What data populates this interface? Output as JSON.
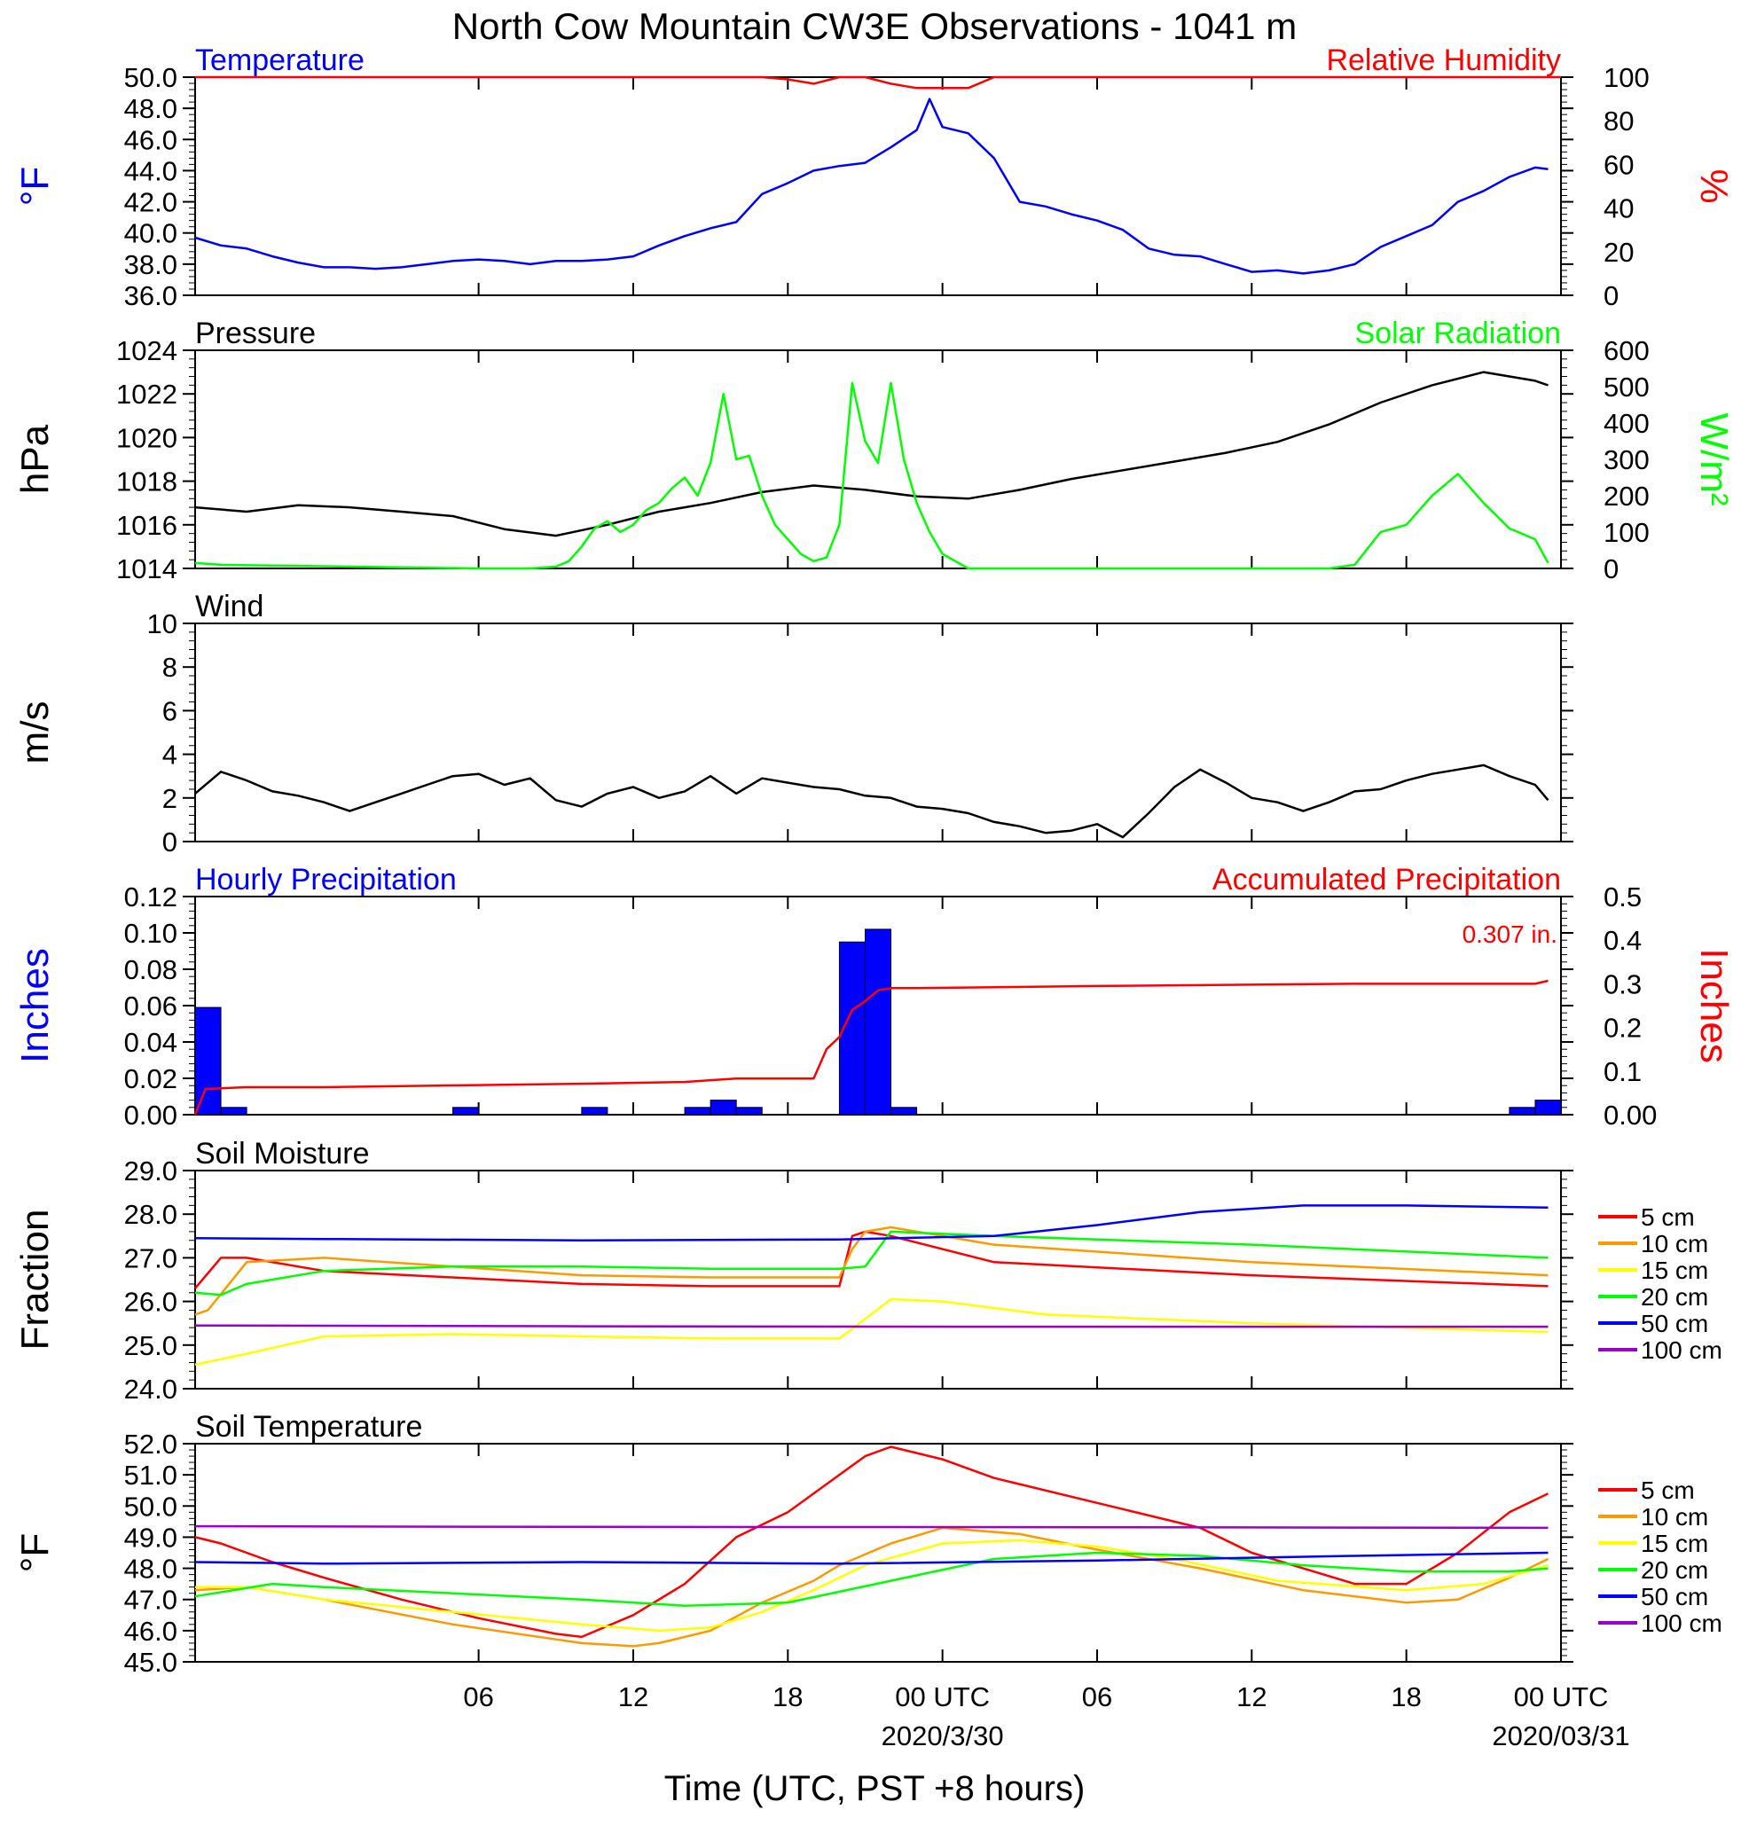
{
  "title": "North Cow Mountain CW3E Observations - 1041 m",
  "xlabel": "Time (UTC, PST +8 hours)",
  "x_ticks": [
    "06",
    "12",
    "18",
    "00 UTC",
    "06",
    "12",
    "18",
    "00 UTC"
  ],
  "x_tick_hours": [
    6,
    12,
    18,
    24,
    30,
    36,
    42,
    48
  ],
  "x_dates": [
    {
      "hour": 24,
      "label": "2020/3/30"
    },
    {
      "hour": 48,
      "label": "2020/03/31"
    }
  ],
  "x_range_hours": [
    -5,
    48
  ],
  "colors": {
    "blue": "#0000ff",
    "red": "#ff0000",
    "green": "#00ff00",
    "black": "#000000",
    "orange": "#ff9900",
    "yellow": "#ffff00",
    "purple": "#9900cc"
  },
  "chart_data": [
    {
      "panel": "temp-rh",
      "type": "line",
      "left_title": "Temperature",
      "right_title": "Relative Humidity",
      "left_unit": "°F",
      "right_unit": "%",
      "ylim_left": [
        36,
        50
      ],
      "yticks_left": [
        "36.0",
        "38.0",
        "40.0",
        "42.0",
        "44.0",
        "46.0",
        "48.0",
        "50.0"
      ],
      "ylim_right": [
        0,
        100
      ],
      "yticks_right": [
        "0",
        "20",
        "40",
        "60",
        "80",
        "100"
      ],
      "series": [
        {
          "name": "Temperature",
          "axis": "left",
          "color": "#0000ff",
          "x": [
            -5,
            -4,
            -3,
            -2,
            -1,
            0,
            1,
            2,
            3,
            4,
            5,
            6,
            7,
            8,
            9,
            10,
            11,
            12,
            13,
            14,
            15,
            16,
            17,
            18,
            19,
            20,
            21,
            22,
            23,
            23.5,
            24,
            25,
            26,
            27,
            28,
            29,
            30,
            31,
            32,
            33,
            34,
            35,
            36,
            37,
            38,
            39,
            40,
            41,
            42,
            43,
            44,
            45,
            46,
            47,
            47.5
          ],
          "y": [
            39.7,
            39.2,
            39.0,
            38.5,
            38.1,
            37.8,
            37.8,
            37.7,
            37.8,
            38.0,
            38.2,
            38.3,
            38.2,
            38.0,
            38.2,
            38.2,
            38.3,
            38.5,
            39.2,
            39.8,
            40.3,
            40.7,
            42.5,
            43.2,
            44.0,
            44.3,
            44.5,
            45.5,
            46.6,
            48.6,
            46.8,
            46.4,
            44.8,
            42.0,
            41.7,
            41.2,
            40.8,
            40.2,
            39.0,
            38.6,
            38.5,
            38.0,
            37.5,
            37.6,
            37.4,
            37.6,
            38.0,
            39.1,
            39.8,
            40.5,
            42.0,
            42.7,
            43.6,
            44.2,
            44.1
          ]
        },
        {
          "name": "Relative Humidity",
          "axis": "right",
          "color": "#ff0000",
          "x": [
            -5,
            14,
            15,
            16,
            17,
            18,
            19,
            20,
            21,
            22,
            23,
            24,
            25,
            26,
            27,
            28,
            48
          ],
          "y": [
            100,
            100,
            100,
            100,
            100,
            99,
            97,
            100,
            100,
            97,
            95,
            95,
            95,
            100,
            100,
            100,
            100
          ]
        }
      ]
    },
    {
      "panel": "pressure-solar",
      "type": "line",
      "left_title": "Pressure",
      "right_title": "Solar Radiation",
      "left_unit": "hPa",
      "right_unit": "W/m²",
      "ylim_left": [
        1014,
        1024
      ],
      "yticks_left": [
        "1014",
        "1016",
        "1018",
        "1020",
        "1022",
        "1024"
      ],
      "ylim_right": [
        0,
        600
      ],
      "yticks_right": [
        "0",
        "100",
        "200",
        "300",
        "400",
        "500",
        "600"
      ],
      "series": [
        {
          "name": "Pressure",
          "axis": "left",
          "color": "#000000",
          "x": [
            -5,
            -3,
            -1,
            1,
            3,
            5,
            7,
            9,
            11,
            13,
            15,
            17,
            19,
            21,
            23,
            25,
            27,
            29,
            31,
            33,
            35,
            37,
            39,
            41,
            43,
            45,
            47,
            47.5
          ],
          "y": [
            1016.8,
            1016.6,
            1016.9,
            1016.8,
            1016.6,
            1016.4,
            1015.8,
            1015.5,
            1016.0,
            1016.6,
            1017.0,
            1017.5,
            1017.8,
            1017.6,
            1017.3,
            1017.2,
            1017.6,
            1018.1,
            1018.5,
            1018.9,
            1019.3,
            1019.8,
            1020.6,
            1021.6,
            1022.4,
            1023.0,
            1022.6,
            1022.4
          ]
        },
        {
          "name": "Solar Radiation",
          "axis": "right",
          "color": "#00ff00",
          "x": [
            -5,
            -4,
            6,
            8,
            9,
            9.5,
            10,
            10.5,
            11,
            11.5,
            12,
            12.5,
            13,
            13.5,
            14,
            14.5,
            15,
            15.5,
            16,
            16.5,
            17,
            17.5,
            18,
            18.5,
            19,
            19.5,
            20,
            20.5,
            21,
            21.5,
            22,
            22.5,
            23,
            23.5,
            24,
            25,
            39,
            40,
            41,
            42,
            43,
            44,
            45,
            46,
            47,
            47.5
          ],
          "y": [
            15,
            10,
            0,
            0,
            5,
            20,
            60,
            110,
            130,
            100,
            120,
            160,
            180,
            220,
            250,
            200,
            290,
            480,
            300,
            310,
            200,
            120,
            80,
            40,
            20,
            30,
            120,
            510,
            350,
            290,
            510,
            300,
            180,
            100,
            40,
            0,
            0,
            10,
            100,
            120,
            200,
            260,
            180,
            110,
            80,
            15
          ]
        }
      ]
    },
    {
      "panel": "wind",
      "type": "line",
      "left_title": "Wind",
      "left_unit": "m/s",
      "ylim_left": [
        0,
        10
      ],
      "yticks_left": [
        "0",
        "2",
        "4",
        "6",
        "8",
        "10"
      ],
      "series": [
        {
          "name": "Wind",
          "axis": "left",
          "color": "#000000",
          "x": [
            -5,
            -4,
            -3,
            -2,
            -1,
            0,
            1,
            2,
            3,
            4,
            5,
            6,
            7,
            8,
            9,
            10,
            11,
            12,
            13,
            14,
            15,
            16,
            17,
            18,
            19,
            20,
            21,
            22,
            23,
            24,
            25,
            26,
            27,
            28,
            29,
            30,
            31,
            32,
            33,
            34,
            35,
            36,
            37,
            38,
            39,
            40,
            41,
            42,
            43,
            44,
            45,
            46,
            47,
            47.5
          ],
          "y": [
            2.2,
            3.2,
            2.8,
            2.3,
            2.1,
            1.8,
            1.4,
            1.8,
            2.2,
            2.6,
            3.0,
            3.1,
            2.6,
            2.9,
            1.9,
            1.6,
            2.2,
            2.5,
            2.0,
            2.3,
            3.0,
            2.2,
            2.9,
            2.7,
            2.5,
            2.4,
            2.1,
            2.0,
            1.6,
            1.5,
            1.3,
            0.9,
            0.7,
            0.4,
            0.5,
            0.8,
            0.2,
            1.3,
            2.5,
            3.3,
            2.7,
            2.0,
            1.8,
            1.4,
            1.8,
            2.3,
            2.4,
            2.8,
            3.1,
            3.3,
            3.5,
            3.0,
            2.6,
            1.9
          ]
        }
      ]
    },
    {
      "panel": "precip",
      "type": "bar",
      "left_title": "Hourly Precipitation",
      "right_title": "Accumulated Precipitation",
      "left_unit": "Inches",
      "right_unit": "Inches",
      "annotation": "0.307 in.",
      "ylim_left": [
        0,
        0.12
      ],
      "yticks_left": [
        "0.00",
        "0.02",
        "0.04",
        "0.06",
        "0.08",
        "0.10",
        "0.12"
      ],
      "ylim_right": [
        0,
        0.5
      ],
      "yticks_right": [
        "0.00",
        "0.1",
        "0.2",
        "0.3",
        "0.4",
        "0.5"
      ],
      "bars_x": [
        -5,
        -4,
        5,
        10,
        14,
        15,
        16,
        20,
        21,
        22,
        46,
        47
      ],
      "bars_y": [
        0.059,
        0.004,
        0.004,
        0.004,
        0.004,
        0.008,
        0.004,
        0.095,
        0.102,
        0.004,
        0.004,
        0.008
      ],
      "series": [
        {
          "name": "Accumulated Precipitation",
          "axis": "right",
          "color": "#ff0000",
          "x": [
            -5,
            -4.6,
            -3,
            0,
            5,
            10,
            14,
            15,
            16,
            19,
            19.5,
            20,
            20.5,
            21,
            21.5,
            22,
            23,
            30,
            40,
            45,
            47,
            47.5
          ],
          "y": [
            0,
            0.059,
            0.063,
            0.063,
            0.067,
            0.071,
            0.075,
            0.079,
            0.083,
            0.083,
            0.15,
            0.178,
            0.24,
            0.26,
            0.285,
            0.29,
            0.29,
            0.295,
            0.3,
            0.3,
            0.3,
            0.307
          ]
        }
      ]
    },
    {
      "panel": "soil-moisture",
      "type": "line",
      "left_title": "Soil Moisture",
      "left_unit": "Fraction",
      "ylim_left": [
        24,
        29
      ],
      "yticks_left": [
        "24.0",
        "25.0",
        "26.0",
        "27.0",
        "28.0",
        "29.0"
      ],
      "series": [
        {
          "name": "5 cm",
          "axis": "left",
          "color": "#ff0000",
          "x": [
            -5,
            -4,
            -3,
            0,
            10,
            15,
            20,
            20.5,
            21,
            22,
            26,
            36,
            47.5
          ],
          "y": [
            26.3,
            27.0,
            27.0,
            26.7,
            26.4,
            26.35,
            26.35,
            27.5,
            27.6,
            27.5,
            26.9,
            26.6,
            26.35
          ]
        },
        {
          "name": "10 cm",
          "axis": "left",
          "color": "#ff9900",
          "x": [
            -5,
            -4.5,
            -3,
            0,
            10,
            15,
            20,
            20.5,
            21,
            22,
            26,
            36,
            47.5
          ],
          "y": [
            25.7,
            25.8,
            26.9,
            27.0,
            26.6,
            26.55,
            26.55,
            27.2,
            27.6,
            27.7,
            27.3,
            26.9,
            26.6
          ]
        },
        {
          "name": "15 cm",
          "axis": "left",
          "color": "#ffff00",
          "x": [
            -5,
            -3,
            0,
            5,
            10,
            15,
            20,
            21,
            22,
            24,
            28,
            36,
            47.5
          ],
          "y": [
            24.55,
            24.8,
            25.2,
            25.25,
            25.2,
            25.15,
            25.15,
            25.6,
            26.05,
            26.0,
            25.7,
            25.5,
            25.3
          ]
        },
        {
          "name": "20 cm",
          "axis": "left",
          "color": "#00ff00",
          "x": [
            -5,
            -4,
            -3,
            0,
            5,
            10,
            15,
            20,
            21,
            22,
            26,
            36,
            47.5
          ],
          "y": [
            26.2,
            26.15,
            26.4,
            26.7,
            26.8,
            26.8,
            26.75,
            26.75,
            26.8,
            27.6,
            27.5,
            27.3,
            27.0
          ]
        },
        {
          "name": "50 cm",
          "axis": "left",
          "color": "#0000ff",
          "x": [
            -5,
            0,
            10,
            20,
            26,
            30,
            34,
            38,
            42,
            47.5
          ],
          "y": [
            27.45,
            27.43,
            27.4,
            27.42,
            27.5,
            27.75,
            28.05,
            28.2,
            28.2,
            28.15
          ]
        },
        {
          "name": "100 cm",
          "axis": "left",
          "color": "#9900cc",
          "x": [
            -5,
            10,
            25,
            47.5
          ],
          "y": [
            25.45,
            25.43,
            25.42,
            25.42
          ]
        }
      ]
    },
    {
      "panel": "soil-temp",
      "type": "line",
      "left_title": "Soil Temperature",
      "left_unit": "°F",
      "ylim_left": [
        45,
        52
      ],
      "yticks_left": [
        "45.0",
        "46.0",
        "47.0",
        "48.0",
        "49.0",
        "50.0",
        "51.0",
        "52.0"
      ],
      "series": [
        {
          "name": "5 cm",
          "axis": "left",
          "color": "#ff0000",
          "x": [
            -5,
            -4,
            -2,
            0,
            3,
            6,
            9,
            10,
            12,
            14,
            16,
            18,
            20,
            21,
            22,
            24,
            26,
            30,
            34,
            36,
            38,
            40,
            42,
            44,
            46,
            47.5
          ],
          "y": [
            49.0,
            48.8,
            48.2,
            47.7,
            47.0,
            46.4,
            45.9,
            45.8,
            46.5,
            47.5,
            49.0,
            49.8,
            51.0,
            51.6,
            51.9,
            51.5,
            50.9,
            50.1,
            49.3,
            48.5,
            48.0,
            47.5,
            47.5,
            48.5,
            49.8,
            50.4
          ]
        },
        {
          "name": "10 cm",
          "axis": "left",
          "color": "#ff9900",
          "x": [
            -5,
            -3,
            0,
            5,
            10,
            12,
            13,
            15,
            17,
            19,
            20,
            22,
            24,
            27,
            30,
            34,
            38,
            42,
            44,
            46,
            47.5
          ],
          "y": [
            47.3,
            47.4,
            47.0,
            46.2,
            45.6,
            45.5,
            45.6,
            46.0,
            46.9,
            47.6,
            48.1,
            48.8,
            49.3,
            49.1,
            48.6,
            48.0,
            47.3,
            46.9,
            47.0,
            47.7,
            48.3
          ]
        },
        {
          "name": "15 cm",
          "axis": "left",
          "color": "#ffff00",
          "x": [
            -5,
            -3,
            0,
            5,
            10,
            13,
            15,
            17,
            19,
            21,
            24,
            27,
            30,
            33,
            37,
            42,
            45,
            47.5
          ],
          "y": [
            47.4,
            47.4,
            47.0,
            46.6,
            46.2,
            46.0,
            46.1,
            46.6,
            47.3,
            48.1,
            48.8,
            48.9,
            48.7,
            48.3,
            47.6,
            47.3,
            47.5,
            48.1
          ]
        },
        {
          "name": "20 cm",
          "axis": "left",
          "color": "#00ff00",
          "x": [
            -5,
            -2,
            0,
            5,
            10,
            14,
            18,
            22,
            26,
            30,
            34,
            38,
            42,
            46,
            47.5
          ],
          "y": [
            47.1,
            47.5,
            47.4,
            47.2,
            47.0,
            46.8,
            46.9,
            47.6,
            48.3,
            48.5,
            48.4,
            48.1,
            47.9,
            47.9,
            48.0
          ]
        },
        {
          "name": "50 cm",
          "axis": "left",
          "color": "#0000ff",
          "x": [
            -5,
            0,
            10,
            20,
            30,
            40,
            47.5
          ],
          "y": [
            48.2,
            48.15,
            48.2,
            48.15,
            48.25,
            48.4,
            48.5
          ]
        },
        {
          "name": "100 cm",
          "axis": "left",
          "color": "#9900cc",
          "x": [
            -5,
            10,
            30,
            47.5
          ],
          "y": [
            49.35,
            49.33,
            49.32,
            49.3
          ]
        }
      ]
    }
  ],
  "soil_legend": [
    "5 cm",
    "10 cm",
    "15 cm",
    "20 cm",
    "50 cm",
    "100 cm"
  ]
}
